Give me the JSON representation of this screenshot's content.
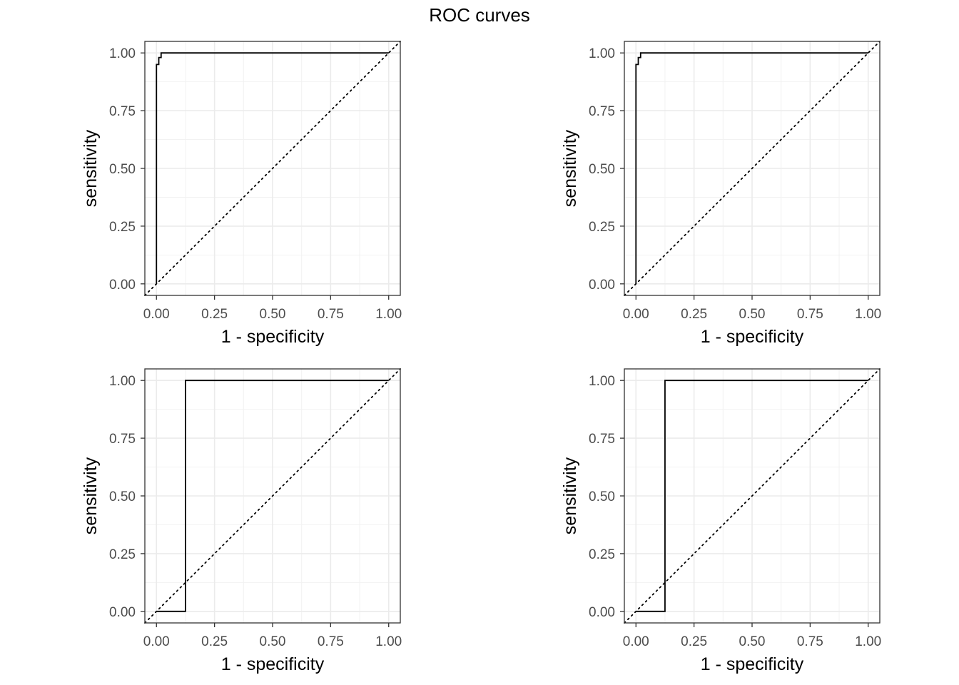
{
  "page": {
    "title": "ROC curves"
  },
  "chart_data": [
    {
      "type": "line",
      "xlabel": "1 - specificity",
      "ylabel": "sensitivity",
      "xlim": [
        0,
        1
      ],
      "ylim": [
        0,
        1
      ],
      "x_ticks": [
        "0.00",
        "0.25",
        "0.50",
        "0.75",
        "1.00"
      ],
      "y_ticks": [
        "0.00",
        "0.25",
        "0.50",
        "0.75",
        "1.00"
      ],
      "grid": true,
      "reference_line": {
        "x": [
          0,
          1
        ],
        "y": [
          0,
          1
        ],
        "style": "dotted"
      },
      "series": [
        {
          "x": [
            0,
            0,
            0.01,
            0.01,
            0.02,
            0.02,
            1
          ],
          "y": [
            0,
            0.95,
            0.95,
            0.98,
            0.98,
            1,
            1
          ]
        }
      ]
    },
    {
      "type": "line",
      "xlabel": "1 - specificity",
      "ylabel": "sensitivity",
      "xlim": [
        0,
        1
      ],
      "ylim": [
        0,
        1
      ],
      "x_ticks": [
        "0.00",
        "0.25",
        "0.50",
        "0.75",
        "1.00"
      ],
      "y_ticks": [
        "0.00",
        "0.25",
        "0.50",
        "0.75",
        "1.00"
      ],
      "grid": true,
      "reference_line": {
        "x": [
          0,
          1
        ],
        "y": [
          0,
          1
        ],
        "style": "dotted"
      },
      "series": [
        {
          "x": [
            0,
            0,
            0.01,
            0.01,
            0.02,
            0.02,
            1
          ],
          "y": [
            0,
            0.95,
            0.95,
            0.98,
            0.98,
            1,
            1
          ]
        }
      ]
    },
    {
      "type": "line",
      "xlabel": "1 - specificity",
      "ylabel": "sensitivity",
      "xlim": [
        0,
        1
      ],
      "ylim": [
        0,
        1
      ],
      "x_ticks": [
        "0.00",
        "0.25",
        "0.50",
        "0.75",
        "1.00"
      ],
      "y_ticks": [
        "0.00",
        "0.25",
        "0.50",
        "0.75",
        "1.00"
      ],
      "grid": true,
      "reference_line": {
        "x": [
          0,
          1
        ],
        "y": [
          0,
          1
        ],
        "style": "dotted"
      },
      "series": [
        {
          "x": [
            0,
            0.125,
            0.125,
            1
          ],
          "y": [
            0,
            0,
            1,
            1
          ]
        }
      ]
    },
    {
      "type": "line",
      "xlabel": "1 - specificity",
      "ylabel": "sensitivity",
      "xlim": [
        0,
        1
      ],
      "ylim": [
        0,
        1
      ],
      "x_ticks": [
        "0.00",
        "0.25",
        "0.50",
        "0.75",
        "1.00"
      ],
      "y_ticks": [
        "0.00",
        "0.25",
        "0.50",
        "0.75",
        "1.00"
      ],
      "grid": true,
      "reference_line": {
        "x": [
          0,
          1
        ],
        "y": [
          0,
          1
        ],
        "style": "dotted"
      },
      "series": [
        {
          "x": [
            0,
            0.125,
            0.125,
            1
          ],
          "y": [
            0,
            0,
            1,
            1
          ]
        }
      ]
    }
  ]
}
